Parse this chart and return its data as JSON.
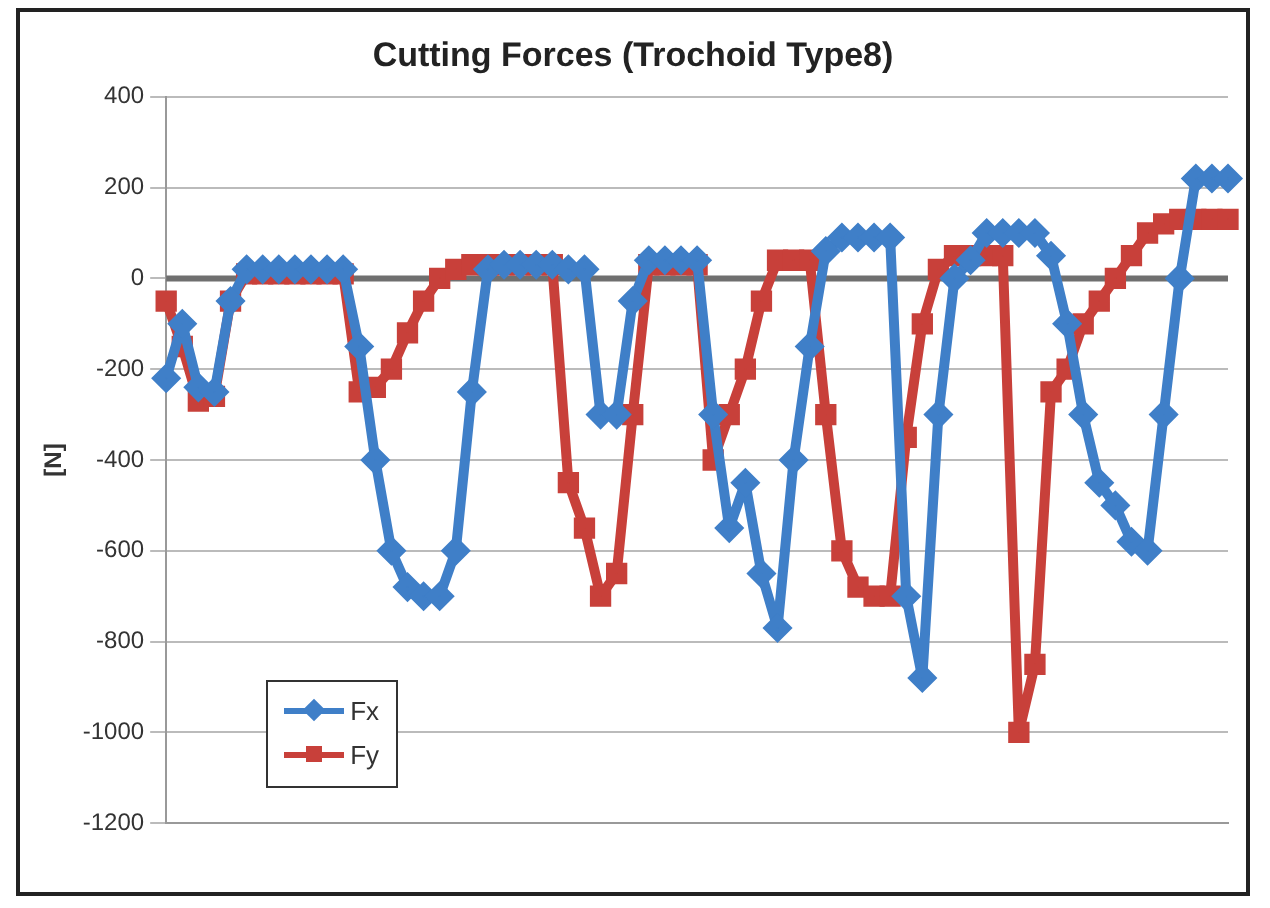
{
  "chart_data": {
    "type": "line",
    "title": "Cutting Forces (Trochoid Type8)",
    "ylabel": "[N]",
    "categories": [
      null,
      null,
      null,
      null,
      null,
      null,
      null,
      null,
      null,
      null,
      null,
      null,
      null,
      null,
      null,
      null,
      null,
      null,
      null,
      null,
      null,
      null,
      null,
      null,
      null,
      null,
      null,
      null,
      null,
      null,
      null,
      null,
      null,
      null,
      null,
      null,
      null,
      null,
      null,
      null,
      null,
      null,
      null,
      null,
      null,
      null,
      null,
      null,
      null,
      null,
      null,
      null,
      null,
      null,
      null,
      null,
      null,
      null,
      null,
      null,
      null,
      null,
      null,
      null,
      null,
      null,
      null
    ],
    "series": [
      {
        "name": "Fx",
        "color": "#3f7fc8",
        "marker": "diamond",
        "values": [
          -220,
          -100,
          -240,
          -250,
          -50,
          20,
          20,
          20,
          20,
          20,
          20,
          20,
          -150,
          -400,
          -600,
          -680,
          -700,
          -700,
          -600,
          -250,
          20,
          30,
          30,
          30,
          30,
          20,
          20,
          -300,
          -300,
          -50,
          40,
          40,
          40,
          40,
          -300,
          -550,
          -450,
          -650,
          -770,
          -400,
          -150,
          60,
          90,
          90,
          90,
          90,
          -700,
          -880,
          -300,
          0,
          40,
          100,
          100,
          100,
          100,
          50,
          -100,
          -300,
          -450,
          -500,
          -580,
          -600,
          -300,
          0,
          220,
          220,
          220
        ]
      },
      {
        "name": "Fy",
        "color": "#c8403a",
        "marker": "square",
        "values": [
          -50,
          -150,
          -270,
          -260,
          -50,
          10,
          10,
          10,
          10,
          10,
          10,
          10,
          -250,
          -240,
          -200,
          -120,
          -50,
          0,
          20,
          30,
          30,
          30,
          30,
          30,
          30,
          -450,
          -550,
          -700,
          -650,
          -300,
          30,
          30,
          30,
          30,
          -400,
          -300,
          -200,
          -50,
          40,
          40,
          40,
          -300,
          -600,
          -680,
          -700,
          -700,
          -350,
          -100,
          20,
          50,
          50,
          50,
          50,
          -1000,
          -850,
          -250,
          -200,
          -100,
          -50,
          0,
          50,
          100,
          120,
          130,
          130,
          130,
          130
        ]
      }
    ],
    "ylim": [
      -1200,
      400
    ],
    "yticks": [
      -1200,
      -1000,
      -800,
      -600,
      -400,
      -200,
      0,
      200,
      400
    ],
    "ref_lines": [
      {
        "axis": "y",
        "value": 0,
        "color": "#6f6f6f"
      }
    ],
    "grid": "y",
    "legend": "bottom left",
    "line_style": "solid"
  }
}
